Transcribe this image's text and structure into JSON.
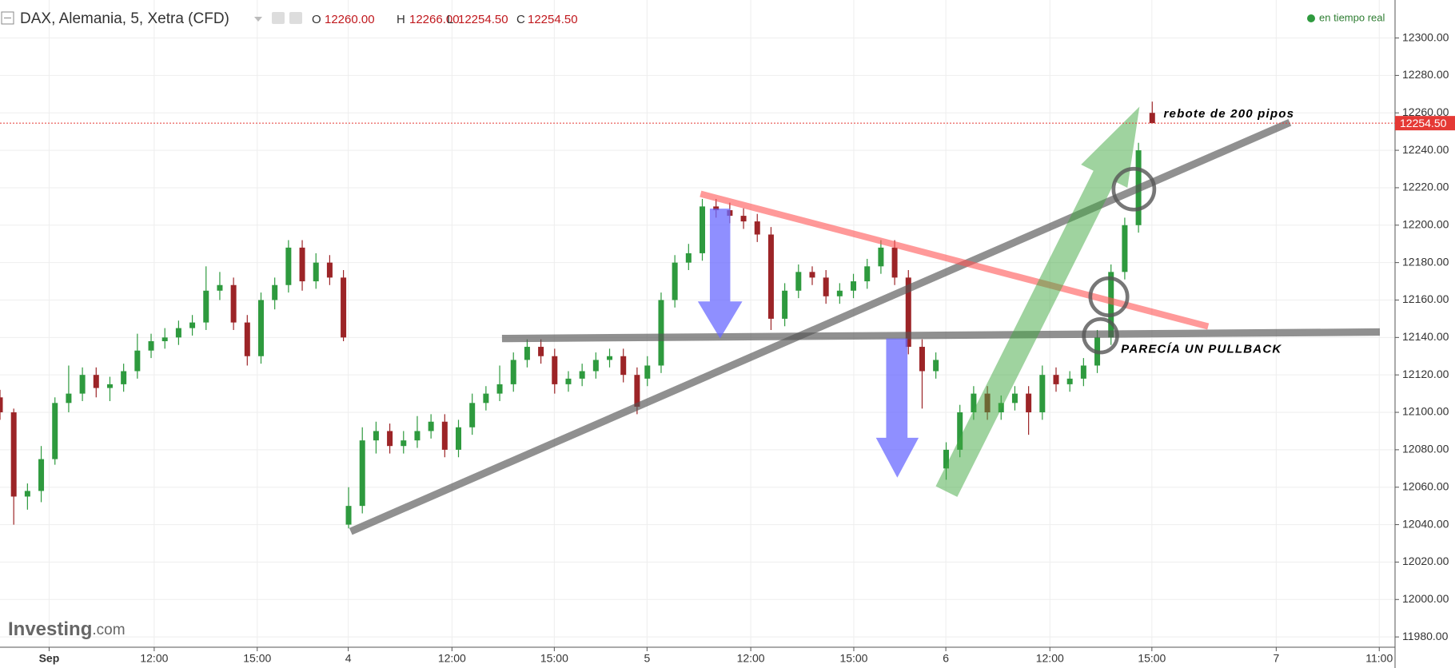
{
  "chart_data": {
    "type": "candlestick",
    "title": "DAX, Alemania, 5, Xetra (CFD)",
    "header": {
      "o_key": "O",
      "open": "12260.00",
      "h_key": "H",
      "high": "12266.00",
      "l_key": "L",
      "low": "12254.50",
      "c_key": "C",
      "close": "12254.50"
    },
    "status": "en tiempo real",
    "last_price": "12254.50",
    "brand": "Investing",
    "brand_suffix": ".com",
    "annotations": [
      "rebote de 200 pipos",
      "PARECÍA UN PULLBACK"
    ],
    "up_color": "#2e9a3e",
    "down_color": "#9c2427",
    "grid": true,
    "xlim": [
      0,
      40.62
    ],
    "ylim": [
      11974.5,
      12320.3
    ],
    "xticks": [
      {
        "value": 1.43,
        "label": "Sep"
      },
      {
        "value": 4.49,
        "label": "12:00"
      },
      {
        "value": 7.49,
        "label": "15:00"
      },
      {
        "value": 10.14,
        "label": "4"
      },
      {
        "value": 13.16,
        "label": "12:00"
      },
      {
        "value": 16.14,
        "label": "15:00"
      },
      {
        "value": 18.84,
        "label": "5"
      },
      {
        "value": 21.86,
        "label": "12:00"
      },
      {
        "value": 24.86,
        "label": "15:00"
      },
      {
        "value": 27.54,
        "label": "6"
      },
      {
        "value": 30.57,
        "label": "12:00"
      },
      {
        "value": 33.54,
        "label": "15:00"
      },
      {
        "value": 37.16,
        "label": "7"
      },
      {
        "value": 40.16,
        "label": "11:00"
      }
    ],
    "yticks": [
      {
        "value": 11980,
        "label": "11980.00"
      },
      {
        "value": 12000,
        "label": "12000.00"
      },
      {
        "value": 12020,
        "label": "12020.00"
      },
      {
        "value": 12040,
        "label": "12040.00"
      },
      {
        "value": 12060,
        "label": "12060.00"
      },
      {
        "value": 12080,
        "label": "12080.00"
      },
      {
        "value": 12100,
        "label": "12100.00"
      },
      {
        "value": 12120,
        "label": "12120.00"
      },
      {
        "value": 12140,
        "label": "12140.00"
      },
      {
        "value": 12160,
        "label": "12160.00"
      },
      {
        "value": 12180,
        "label": "12180.00"
      },
      {
        "value": 12200,
        "label": "12200.00"
      },
      {
        "value": 12220,
        "label": "12220.00"
      },
      {
        "value": 12240,
        "label": "12240.00"
      },
      {
        "value": 12260,
        "label": "12260.00"
      },
      {
        "value": 12280,
        "label": "12280.00"
      },
      {
        "value": 12300,
        "label": "12300.00"
      }
    ],
    "x": [
      0,
      0.4,
      0.8,
      1.2,
      1.6,
      2,
      2.4,
      2.8,
      3.2,
      3.6,
      4,
      4.4,
      4.8,
      5.2,
      5.6,
      6,
      6.4,
      6.8,
      7.2,
      7.6,
      8,
      8.4,
      8.8,
      9.2,
      9.6,
      10,
      10.15,
      10.55,
      10.95,
      11.35,
      11.75,
      12.15,
      12.55,
      12.95,
      13.35,
      13.75,
      14.15,
      14.55,
      14.95,
      15.35,
      15.75,
      16.15,
      16.55,
      16.95,
      17.35,
      17.75,
      18.15,
      18.55,
      18.85,
      19.25,
      19.65,
      20.05,
      20.45,
      20.85,
      21.25,
      21.65,
      22.05,
      22.45,
      22.85,
      23.25,
      23.65,
      24.05,
      24.45,
      24.85,
      25.25,
      25.65,
      26.05,
      26.45,
      26.85,
      27.25,
      27.55,
      27.95,
      28.35,
      28.75,
      29.15,
      29.55,
      29.95,
      30.35,
      30.75,
      31.15,
      31.55,
      31.95,
      32.35,
      32.75,
      33.15,
      33.55
    ],
    "open": [
      12108,
      12100,
      12055,
      12058,
      12075,
      12105,
      12110,
      12120,
      12113,
      12115,
      12122,
      12133,
      12138,
      12140,
      12145,
      12148,
      12165,
      12168,
      12148,
      12130,
      12160,
      12168,
      12188,
      12170,
      12180,
      12172,
      12040,
      12050,
      12085,
      12090,
      12082,
      12085,
      12090,
      12095,
      12080,
      12092,
      12105,
      12110,
      12115,
      12128,
      12135,
      12130,
      12115,
      12118,
      12122,
      12128,
      12130,
      12120,
      12118,
      12125,
      12160,
      12180,
      12185,
      12210,
      12208,
      12205,
      12202,
      12195,
      12150,
      12165,
      12175,
      12172,
      12162,
      12165,
      12170,
      12178,
      12188,
      12172,
      12135,
      12122,
      12070,
      12080,
      12100,
      12110,
      12100,
      12105,
      12110,
      12100,
      12120,
      12115,
      12118,
      12125,
      12140,
      12175,
      12200,
      12260
    ],
    "high": [
      12112,
      12102,
      12062,
      12082,
      12108,
      12125,
      12124,
      12124,
      12119,
      12126,
      12142,
      12142,
      12145,
      12149,
      12152,
      12178,
      12175,
      12172,
      12152,
      12164,
      12172,
      12192,
      12192,
      12185,
      12184,
      12176,
      12060,
      12092,
      12095,
      12094,
      12090,
      12098,
      12099,
      12099,
      12096,
      12110,
      12114,
      12125,
      12132,
      12139,
      12139,
      12134,
      12122,
      12126,
      12132,
      12134,
      12134,
      12124,
      12130,
      12164,
      12184,
      12190,
      12214,
      12214,
      12212,
      12209,
      12206,
      12199,
      12169,
      12179,
      12178,
      12176,
      12169,
      12174,
      12182,
      12192,
      12192,
      12176,
      12139,
      12132,
      12084,
      12104,
      12114,
      12114,
      12109,
      12114,
      12114,
      12125,
      12124,
      12122,
      12129,
      12144,
      12179,
      12204,
      12244,
      12266
    ],
    "low": [
      12096,
      12040,
      12048,
      12052,
      12072,
      12100,
      12106,
      12108,
      12106,
      12111,
      12118,
      12129,
      12134,
      12136,
      12141,
      12144,
      12160,
      12144,
      12125,
      12126,
      12155,
      12164,
      12165,
      12166,
      12168,
      12138,
      12038,
      12046,
      12078,
      12078,
      12078,
      12081,
      12086,
      12076,
      12076,
      12088,
      12101,
      12106,
      12111,
      12124,
      12126,
      12110,
      12111,
      12114,
      12118,
      12124,
      12116,
      12099,
      12114,
      12121,
      12156,
      12176,
      12181,
      12204,
      12201,
      12198,
      12191,
      12144,
      12146,
      12161,
      12168,
      12158,
      12158,
      12161,
      12166,
      12174,
      12168,
      12131,
      12102,
      12118,
      12064,
      12076,
      12096,
      12096,
      12096,
      12101,
      12088,
      12096,
      12111,
      12111,
      12114,
      12121,
      12136,
      12171,
      12196,
      12254.5
    ],
    "close": [
      12100,
      12055,
      12058,
      12075,
      12105,
      12110,
      12120,
      12113,
      12115,
      12122,
      12133,
      12138,
      12140,
      12145,
      12148,
      12165,
      12168,
      12148,
      12130,
      12160,
      12168,
      12188,
      12170,
      12180,
      12172,
      12140,
      12050,
      12085,
      12090,
      12082,
      12085,
      12090,
      12095,
      12080,
      12092,
      12105,
      12110,
      12115,
      12128,
      12135,
      12130,
      12115,
      12118,
      12122,
      12128,
      12130,
      12120,
      12103,
      12125,
      12160,
      12180,
      12185,
      12210,
      12208,
      12205,
      12202,
      12195,
      12150,
      12165,
      12175,
      12172,
      12162,
      12165,
      12170,
      12178,
      12188,
      12172,
      12135,
      12122,
      12128,
      12080,
      12100,
      12110,
      12100,
      12105,
      12110,
      12100,
      12120,
      12115,
      12118,
      12125,
      12140,
      12175,
      12200,
      12240,
      12254.5
    ]
  }
}
